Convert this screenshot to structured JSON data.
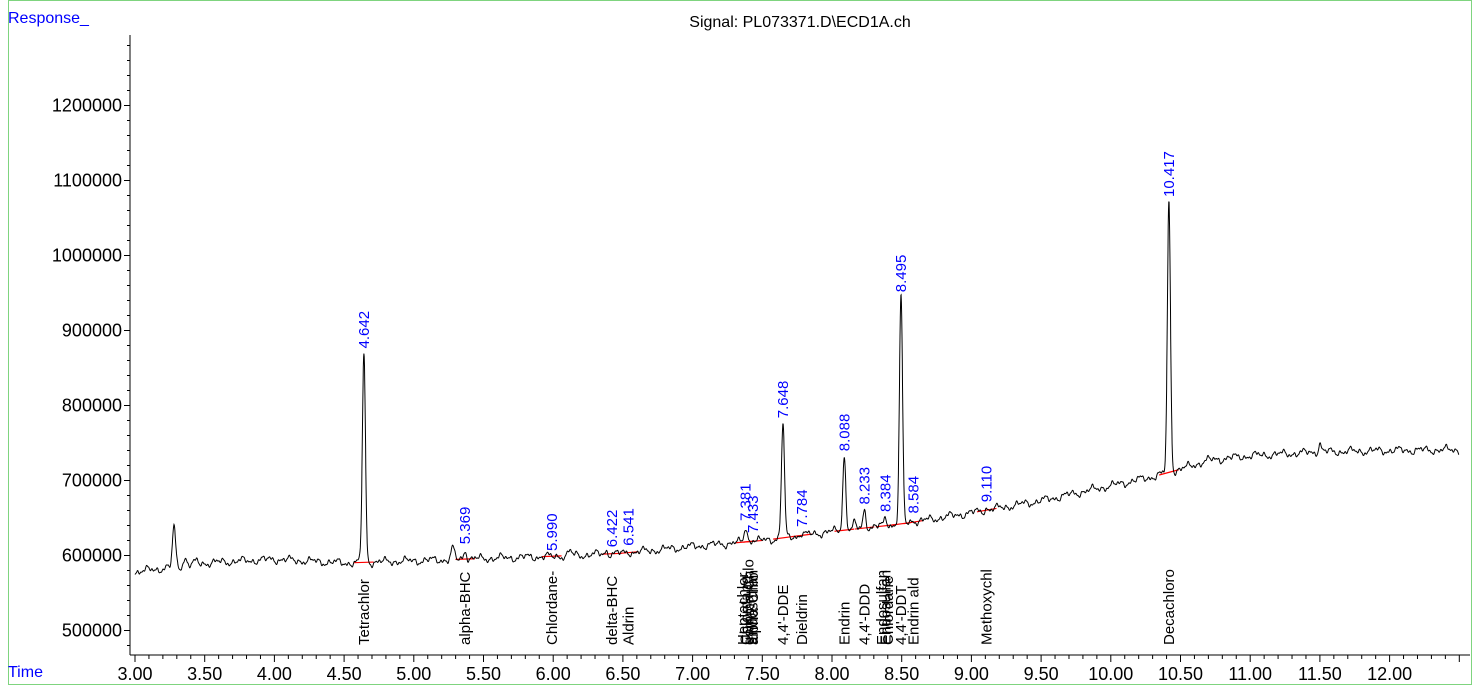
{
  "chart_data": {
    "type": "line",
    "title": "Signal: PL073371.D\\ECD1A.ch",
    "ylabel": "Response_",
    "xlabel": "Time",
    "xlim": [
      3.0,
      12.5
    ],
    "ylim": [
      470000,
      1300000
    ],
    "x_ticks": [
      "3.00",
      "3.50",
      "4.00",
      "4.50",
      "5.00",
      "5.50",
      "6.00",
      "6.50",
      "7.00",
      "7.50",
      "8.00",
      "8.50",
      "9.00",
      "9.50",
      "10.00",
      "10.50",
      "11.00",
      "11.50",
      "12.00"
    ],
    "y_ticks": [
      "500000",
      "600000",
      "700000",
      "800000",
      "900000",
      "1000000",
      "1100000",
      "1200000"
    ],
    "baseline": [
      [
        3.0,
        578000
      ],
      [
        3.5,
        590000
      ],
      [
        4.0,
        595000
      ],
      [
        4.5,
        590000
      ],
      [
        5.0,
        593000
      ],
      [
        5.5,
        596000
      ],
      [
        6.0,
        599000
      ],
      [
        6.5,
        603000
      ],
      [
        7.0,
        612000
      ],
      [
        7.5,
        620000
      ],
      [
        8.0,
        632000
      ],
      [
        8.5,
        642000
      ],
      [
        9.0,
        657000
      ],
      [
        9.5,
        673000
      ],
      [
        10.0,
        693000
      ],
      [
        10.3,
        705000
      ],
      [
        10.5,
        715000
      ],
      [
        10.7,
        727000
      ],
      [
        11.0,
        733000
      ],
      [
        11.5,
        738000
      ],
      [
        12.0,
        740000
      ],
      [
        12.5,
        741000
      ]
    ],
    "peaks": [
      {
        "rt": "4.642",
        "x": 4.642,
        "apex": 868000,
        "compound": "Tetrachlor"
      },
      {
        "rt": "5.369",
        "x": 5.369,
        "apex": 607000,
        "compound": "alpha-BHC"
      },
      {
        "rt": "5.990",
        "x": 5.99,
        "apex": 598000,
        "compound": "Chlordane-"
      },
      {
        "rt": "6.422",
        "x": 6.422,
        "apex": 603000,
        "compound": "delta-BHC"
      },
      {
        "rt": "6.541",
        "x": 6.541,
        "apex": 605000,
        "compound": "Aldrin"
      },
      {
        "rt": "7.381",
        "x": 7.381,
        "apex": 638000,
        "compound": "Chlordane-"
      },
      {
        "rt": "7.433",
        "x": 7.433,
        "apex": 622000,
        "compound": "alpha-Chlo"
      },
      {
        "rt": "7.648",
        "x": 7.648,
        "apex": 775000,
        "compound": "4,4'-DDE"
      },
      {
        "rt": "7.784",
        "x": 7.784,
        "apex": 630000,
        "compound": "Dieldrin"
      },
      {
        "rt": "8.088",
        "x": 8.088,
        "apex": 731000,
        "compound": "Endrin"
      },
      {
        "rt": "8.233",
        "x": 8.233,
        "apex": 660000,
        "compound": "4,4'-DDD"
      },
      {
        "rt": "8.384",
        "x": 8.384,
        "apex": 650000,
        "compound": "Endosulfan"
      },
      {
        "rt": "8.495",
        "x": 8.495,
        "apex": 943000,
        "compound": "4,4'-DDT"
      },
      {
        "rt": "8.584",
        "x": 8.584,
        "apex": 648000,
        "compound": "Endrin ald"
      },
      {
        "rt": "9.110",
        "x": 9.11,
        "apex": 663000,
        "compound": "Methoxychl"
      },
      {
        "rt": "10.417",
        "x": 10.417,
        "apex": 1070000,
        "compound": "Decachloro"
      }
    ],
    "extra_compound_labels": [
      {
        "x": 7.36,
        "compound": "Heptachlor"
      },
      {
        "x": 7.4,
        "compound": "gamma-Chlo"
      },
      {
        "x": 7.43,
        "compound": "Endosulfan"
      },
      {
        "x": 8.4,
        "compound": "Chlordane"
      },
      {
        "x": 8.36,
        "compound": "Endosulfan"
      }
    ],
    "minor_peaks": [
      {
        "x": 3.28,
        "apex": 638000
      },
      {
        "x": 3.36,
        "apex": 597000
      },
      {
        "x": 3.44,
        "apex": 592000
      },
      {
        "x": 5.28,
        "apex": 610000
      },
      {
        "x": 6.12,
        "apex": 606000
      },
      {
        "x": 6.38,
        "apex": 606000
      },
      {
        "x": 8.16,
        "apex": 642000
      },
      {
        "x": 11.5,
        "apex": 749000
      }
    ],
    "line_color": "#000000",
    "rt_label_color": "#0000ff",
    "integration_color": "#ff0000",
    "frame_color": "#7fd47f",
    "grid": false
  }
}
